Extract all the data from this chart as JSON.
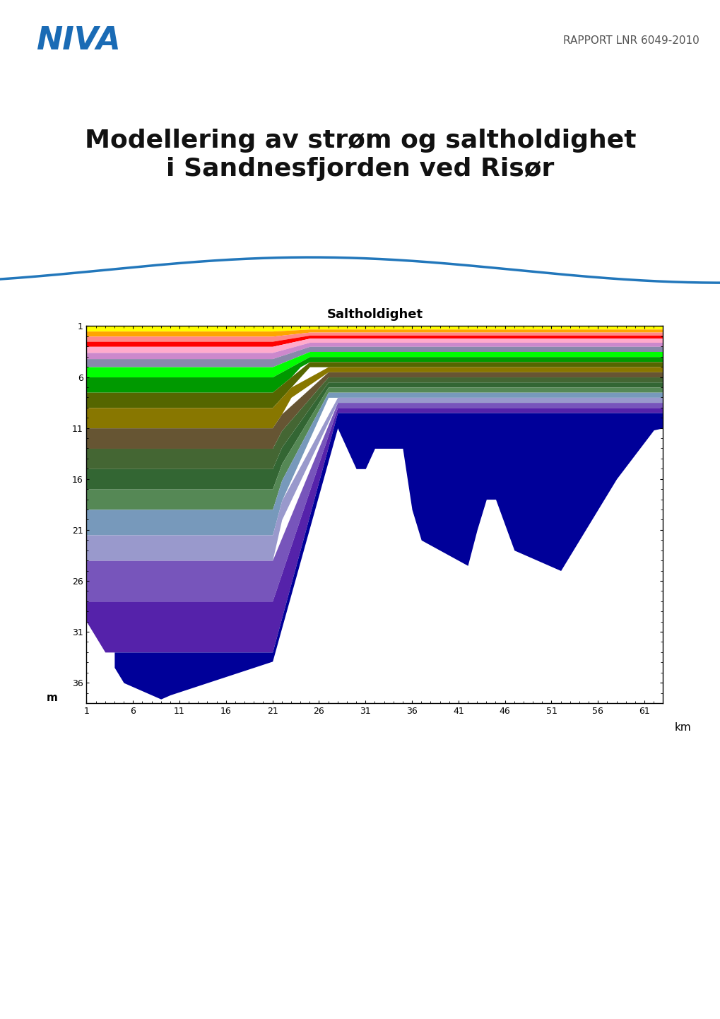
{
  "title_main": "Modellering av strøm og saltholdighet\ni Sandnesfjorden ved Risør",
  "rapport_text": "RAPPORT LNR 6049-2010",
  "chart_title": "Saltholdighet",
  "xlabel": "km",
  "ylabel": "m",
  "bg_color": "#ffffff",
  "niva_color": "#1a6bb5",
  "rapport_color": "#555555",
  "wave_color": "#2277bb",
  "x_ticks": [
    1,
    6,
    11,
    16,
    21,
    26,
    31,
    36,
    41,
    46,
    51,
    56,
    61
  ],
  "y_ticks": [
    1,
    6,
    11,
    16,
    21,
    26,
    31,
    36
  ],
  "x_range": [
    1,
    63
  ],
  "y_range": [
    38,
    1
  ],
  "layer_colors": [
    "#ffff00",
    "#ffa500",
    "#ff8888",
    "#ff0000",
    "#ffaacc",
    "#cc88cc",
    "#8888aa",
    "#00ff00",
    "#009900",
    "#556600",
    "#887700",
    "#665533",
    "#446633",
    "#336633",
    "#558855",
    "#7799bb",
    "#9999cc",
    "#7755bb",
    "#5522aa",
    "#000099"
  ]
}
